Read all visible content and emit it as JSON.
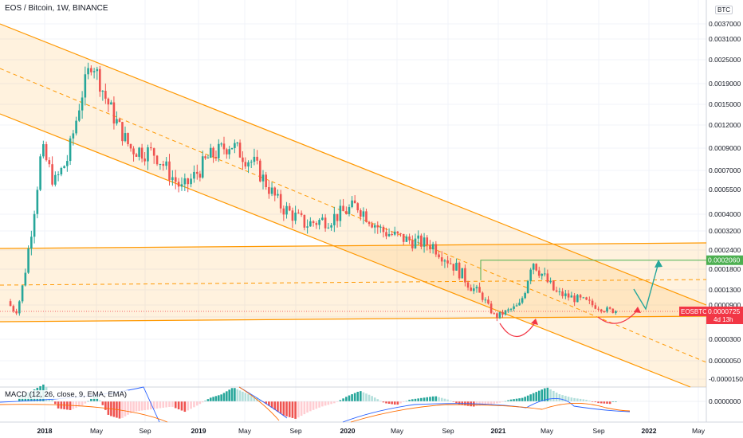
{
  "header": {
    "title": "EOS / Bitcoin, 1W, BINANCE",
    "unit_badge": "BTC"
  },
  "macd": {
    "title": "MACD (12, 26, close, 9, EMA, EMA)",
    "axis_labels": [
      "0.0000000"
    ]
  },
  "price_axis": {
    "labels": [
      "0.0037000",
      "0.0031000",
      "0.0025000",
      "0.0019000",
      "0.0015000",
      "0.0012000",
      "0.0009000",
      "0.0007000",
      "0.0005500",
      "0.0004000",
      "0.0003200",
      "0.0002400",
      "0.0001800",
      "0.0001300",
      "0.0000900",
      "0.0000600",
      "0.0000300",
      "0.0000050",
      "-0.0000150"
    ]
  },
  "price_tags": {
    "target": "0.0002060",
    "symbol": "EOSBTC",
    "last": "0.0000725",
    "countdown": "4d 13h"
  },
  "time_axis": {
    "labels": [
      {
        "text": "2018",
        "year": true
      },
      {
        "text": "May",
        "year": false
      },
      {
        "text": "Sep",
        "year": false
      },
      {
        "text": "2019",
        "year": true
      },
      {
        "text": "May",
        "year": false
      },
      {
        "text": "Sep",
        "year": false
      },
      {
        "text": "2020",
        "year": true
      },
      {
        "text": "May",
        "year": false
      },
      {
        "text": "Sep",
        "year": false
      },
      {
        "text": "2021",
        "year": true
      },
      {
        "text": "May",
        "year": false
      },
      {
        "text": "Sep",
        "year": false
      },
      {
        "text": "2022",
        "year": true
      },
      {
        "text": "May",
        "year": false
      }
    ]
  },
  "colors": {
    "up": "#26a69a",
    "down": "#ef5350",
    "macd_up_strong": "#26a69a",
    "macd_up_weak": "#b2dfdb",
    "macd_down_strong": "#ef5350",
    "macd_down_weak": "#ffcdd2",
    "channel": "#ff9800",
    "target": "#4caf50",
    "arrow": "#26a69a",
    "curve": "#f23645",
    "last_price": "#f23645"
  },
  "chart_data": {
    "type": "candlestick",
    "symbol": "EOSBTC",
    "interval": "1W",
    "exchange": "BINANCE",
    "y_scale": "log",
    "y_ticks": [
      0.0037,
      0.0031,
      0.0025,
      0.0019,
      0.0015,
      0.0012,
      0.0009,
      0.0007,
      0.00055,
      0.0004,
      0.00032,
      0.00024,
      0.00018,
      0.00013,
      9e-05,
      6e-05,
      3e-05,
      5e-06,
      -1.5e-05
    ],
    "x_ticks": [
      "2018",
      "May",
      "Sep",
      "2019",
      "May",
      "Sep",
      "2020",
      "May",
      "Sep",
      "2021",
      "May",
      "Sep",
      "2022",
      "May"
    ],
    "last_price": 7.25e-05,
    "target_price": 0.000206,
    "close_path": [
      [
        "2017-10",
        0.00012
      ],
      [
        "2017-11",
        7e-05
      ],
      [
        "2017-12",
        0.00025
      ],
      [
        "2018-01",
        0.0009
      ],
      [
        "2018-02",
        0.0006
      ],
      [
        "2018-03",
        0.0008
      ],
      [
        "2018-04",
        0.0016
      ],
      [
        "2018-04-28",
        0.0025
      ],
      [
        "2018-06",
        0.0016
      ],
      [
        "2018-08",
        0.0009
      ],
      [
        "2018-10",
        0.00085
      ],
      [
        "2018-12",
        0.00055
      ],
      [
        "2019-02",
        0.0008
      ],
      [
        "2019-04",
        0.00095
      ],
      [
        "2019-06",
        0.00075
      ],
      [
        "2019-08",
        0.00045
      ],
      [
        "2019-10",
        0.00035
      ],
      [
        "2019-12",
        0.00038
      ],
      [
        "2020-02",
        0.00045
      ],
      [
        "2020-04",
        0.00032
      ],
      [
        "2020-06",
        0.00028
      ],
      [
        "2020-08",
        0.00026
      ],
      [
        "2020-10",
        0.00018
      ],
      [
        "2020-12",
        0.00011
      ],
      [
        "2021-01",
        6e-05
      ],
      [
        "2021-03",
        9e-05
      ],
      [
        "2021-04",
        0.00021
      ],
      [
        "2021-06",
        0.00012
      ],
      [
        "2021-08",
        0.0001
      ],
      [
        "2021-10",
        7.5e-05
      ]
    ]
  }
}
